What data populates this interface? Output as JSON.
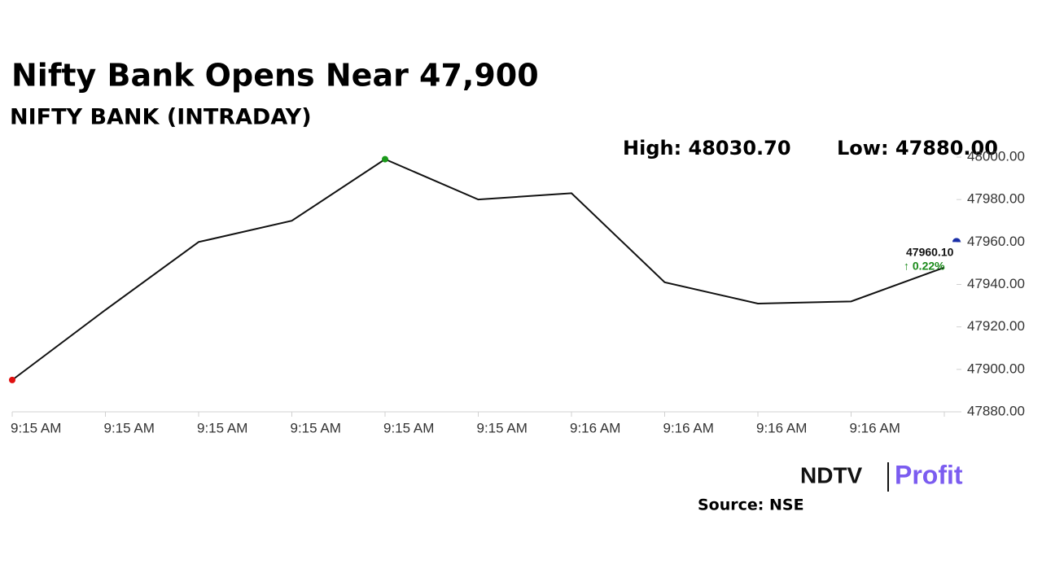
{
  "chart_data": {
    "type": "line",
    "title": "Nifty Bank Opens Near 47,900",
    "subtitle": "NIFTY BANK (INTRADAY)",
    "high_label": "High: 48030.70",
    "low_label": "Low: 47880.00",
    "last_value_label": "47960.10",
    "change_label": "↑ 0.22%",
    "source": "Source: NSE",
    "logo": [
      "NDTV",
      "Profit"
    ],
    "categories": [
      "9:15 AM",
      "9:15 AM",
      "9:15 AM",
      "9:15 AM",
      "9:15 AM",
      "9:15 AM",
      "9:16 AM",
      "9:16 AM",
      "9:16 AM",
      "9:16 AM",
      null
    ],
    "series": [
      {
        "name": "NIFTY BANK",
        "color": "#111111",
        "values": [
          47895,
          47928,
          47960,
          47970,
          47999,
          47980,
          47983,
          47941,
          47931,
          47932,
          47948
        ]
      }
    ],
    "current_marker": 47960,
    "ylim": [
      47880,
      48000
    ],
    "yticks": [
      {
        "value": 47880,
        "label": "47880.00"
      },
      {
        "value": 47900,
        "label": "47900.00"
      },
      {
        "value": 47920,
        "label": "47920.00"
      },
      {
        "value": 47940,
        "label": "47940.00"
      },
      {
        "value": 47960,
        "label": "47960.00"
      },
      {
        "value": 47980,
        "label": "47980.00"
      },
      {
        "value": 48000,
        "label": "48000.00"
      }
    ],
    "grid": false
  }
}
